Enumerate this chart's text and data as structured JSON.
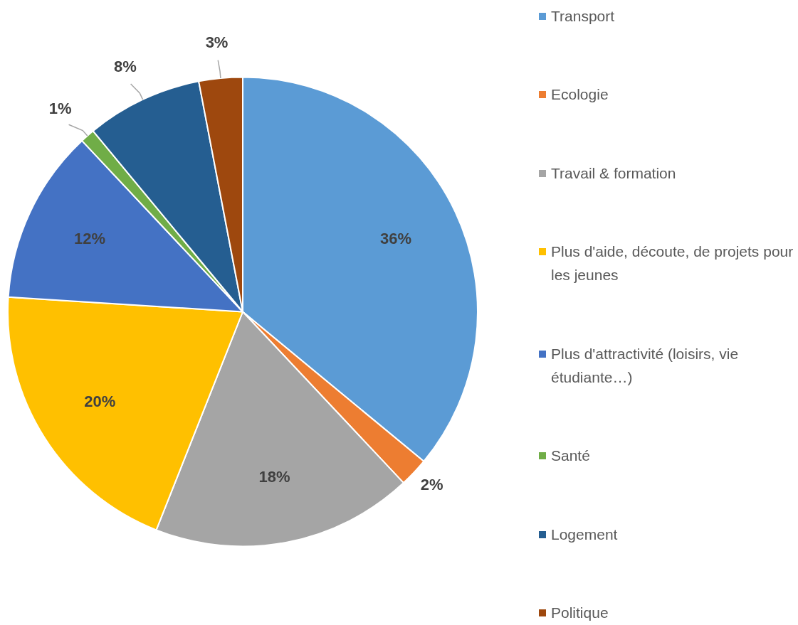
{
  "chart_data": {
    "type": "pie",
    "categories": [
      "Transport",
      "Ecologie",
      "Travail & formation",
      "Plus d'aide, découte, de projets pour les jeunes",
      "Plus d'attractivité (loisirs, vie étudiante…)",
      "Santé",
      "Logement",
      "Politique"
    ],
    "values": [
      36,
      2,
      18,
      20,
      12,
      1,
      8,
      3
    ],
    "colors": [
      "#5b9bd5",
      "#ed7d31",
      "#a5a5a5",
      "#ffc000",
      "#4472c4",
      "#70ad47",
      "#255e91",
      "#9e480e"
    ],
    "value_labels": [
      "36%",
      "2%",
      "18%",
      "20%",
      "12%",
      "1%",
      "8%",
      "3%"
    ],
    "legend": "right"
  }
}
